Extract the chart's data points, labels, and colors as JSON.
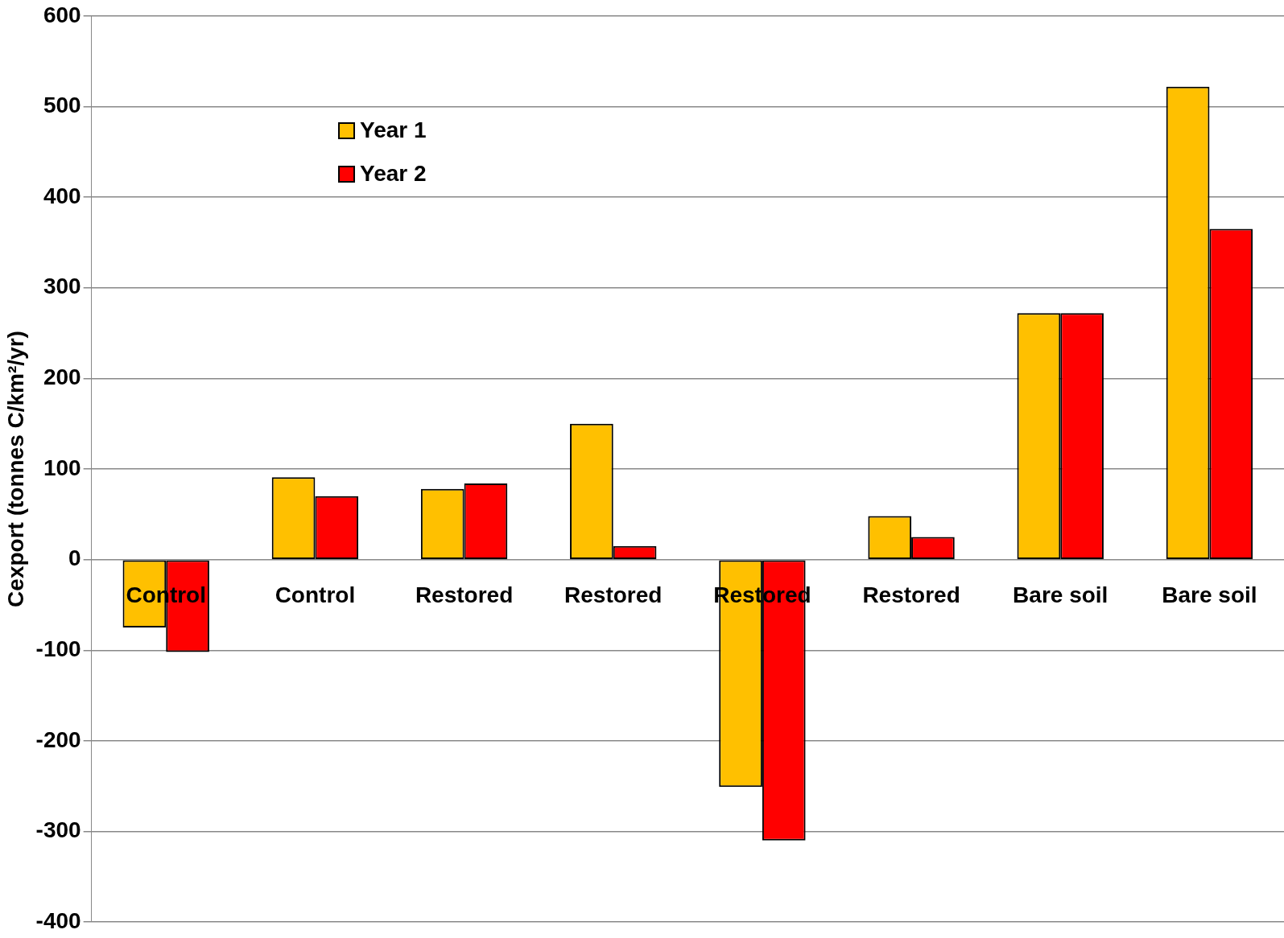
{
  "chart_data": {
    "type": "bar",
    "ylabel": "Cexport (tonnes C/km²/yr)",
    "categories": [
      "Control",
      "Control",
      "Restored",
      "Restored",
      "Restored",
      "Restored",
      "Bare soil",
      "Bare soil"
    ],
    "series": [
      {
        "name": "Year 1",
        "color": "#ffc000",
        "values": [
          -75,
          91,
          78,
          150,
          -251,
          48,
          272,
          522
        ]
      },
      {
        "name": "Year 2",
        "color": "#ff0000",
        "values": [
          -102,
          70,
          84,
          15,
          -310,
          25,
          272,
          365
        ]
      }
    ],
    "ylim": [
      -400,
      600
    ],
    "yticks": [
      -400,
      -300,
      -200,
      -100,
      0,
      100,
      200,
      300,
      400,
      500,
      600
    ],
    "grid": "y",
    "legend": "top left"
  }
}
